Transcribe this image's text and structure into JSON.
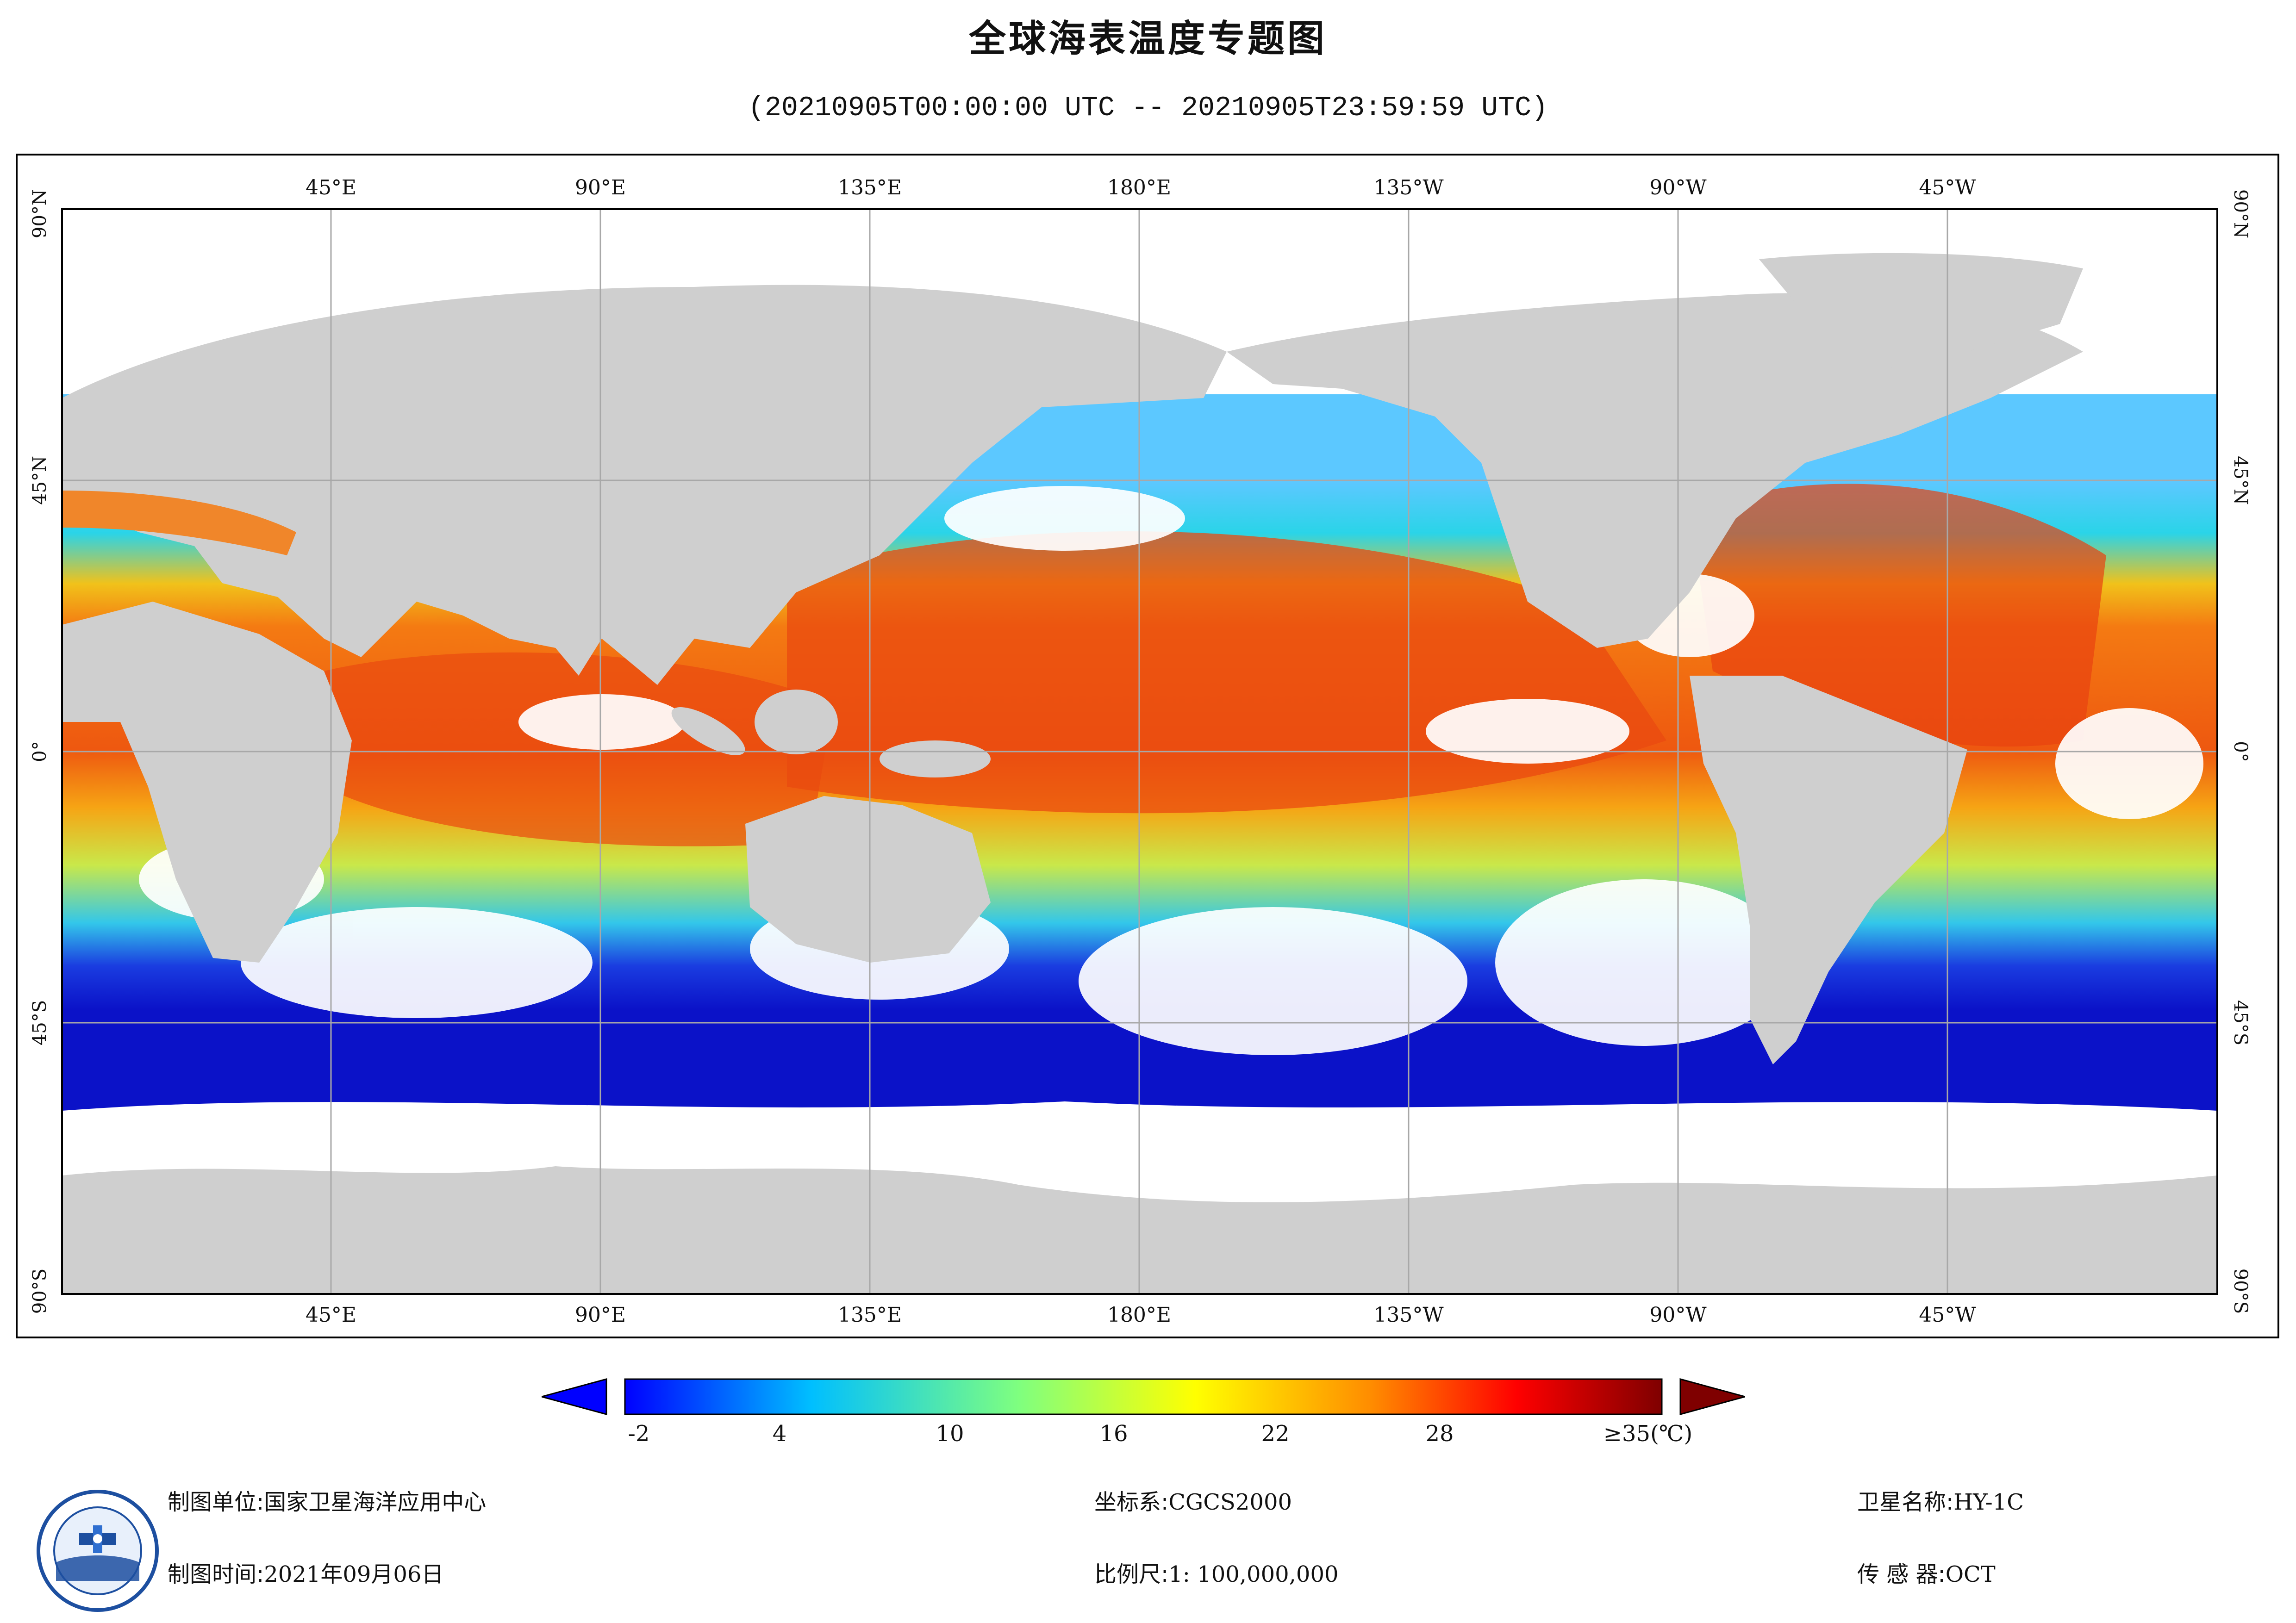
{
  "header": {
    "title": "全球海表温度专题图",
    "subtitle": "(20210905T00:00:00 UTC -- 20210905T23:59:59 UTC)"
  },
  "map": {
    "lon_labels": [
      "45°E",
      "90°E",
      "135°E",
      "180°E",
      "135°W",
      "90°W",
      "45°W"
    ],
    "lat_labels": [
      "90°N",
      "45°N",
      "0°",
      "45°S",
      "90°S"
    ],
    "colors": {
      "land": "#cfcfcf",
      "cloud": "#ffffff",
      "grid": "#a8a8a8",
      "sst_cold": "#0b12c8",
      "sst_cool": "#18b8ee",
      "sst_mid": "#8fe870",
      "sst_warm": "#f5d21a",
      "sst_hot": "#f47a12",
      "sst_max": "#e63b10"
    }
  },
  "colorbar": {
    "ticks": [
      "-2",
      "4",
      "10",
      "16",
      "22",
      "28",
      "≥35(℃)"
    ],
    "colors": [
      "#0000ff",
      "#00bfff",
      "#7fff7f",
      "#ffff00",
      "#ff8c00",
      "#ff0000",
      "#7f0000"
    ]
  },
  "footer": {
    "unit_label": "制图单位:",
    "unit_value": "国家卫星海洋应用中心",
    "time_label": "制图时间:",
    "time_value": "2021年09月06日",
    "crs_label": "坐标系:",
    "crs_value": "CGCS2000",
    "scale_label": "比例尺:",
    "scale_value": "1: 100,000,000",
    "satellite_label": "卫星名称:",
    "satellite_value": "HY-1C",
    "sensor_label": "传 感 器:",
    "sensor_value": "OCT"
  }
}
